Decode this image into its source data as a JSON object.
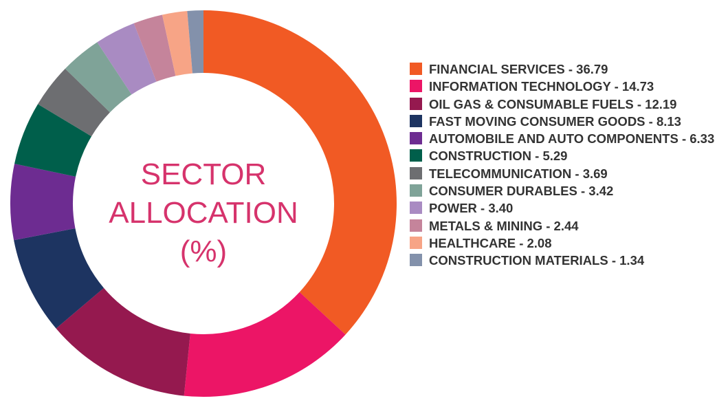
{
  "chart_data": {
    "type": "donut",
    "title": "SECTOR ALLOCATION (%)",
    "categories": [
      "FINANCIAL SERVICES - 36.79",
      "INFORMATION TECHNOLOGY - 14.73",
      "OIL GAS & CONSUMABLE FUELS - 12.19",
      "FAST MOVING CONSUMER GOODS - 8.13",
      "AUTOMOBILE AND AUTO COMPONENTS - 6.33",
      "CONSTRUCTION - 5.29",
      "TELECOMMUNICATION - 3.69",
      "CONSUMER DURABLES - 3.42",
      "POWER - 3.40",
      "METALS & MINING - 2.44",
      "HEALTHCARE - 2.08",
      "CONSTRUCTION MATERIALS - 1.34"
    ],
    "values": [
      36.79,
      14.73,
      12.19,
      8.13,
      6.33,
      5.29,
      3.69,
      3.42,
      3.4,
      2.44,
      2.08,
      1.34
    ],
    "colors": [
      "#f15a24",
      "#ec1566",
      "#95194f",
      "#1d3461",
      "#6d2c91",
      "#005f4b",
      "#6d6e71",
      "#7fa398",
      "#a98bc2",
      "#c5849b",
      "#f7a486",
      "#8391ab"
    ],
    "legend": "right"
  }
}
